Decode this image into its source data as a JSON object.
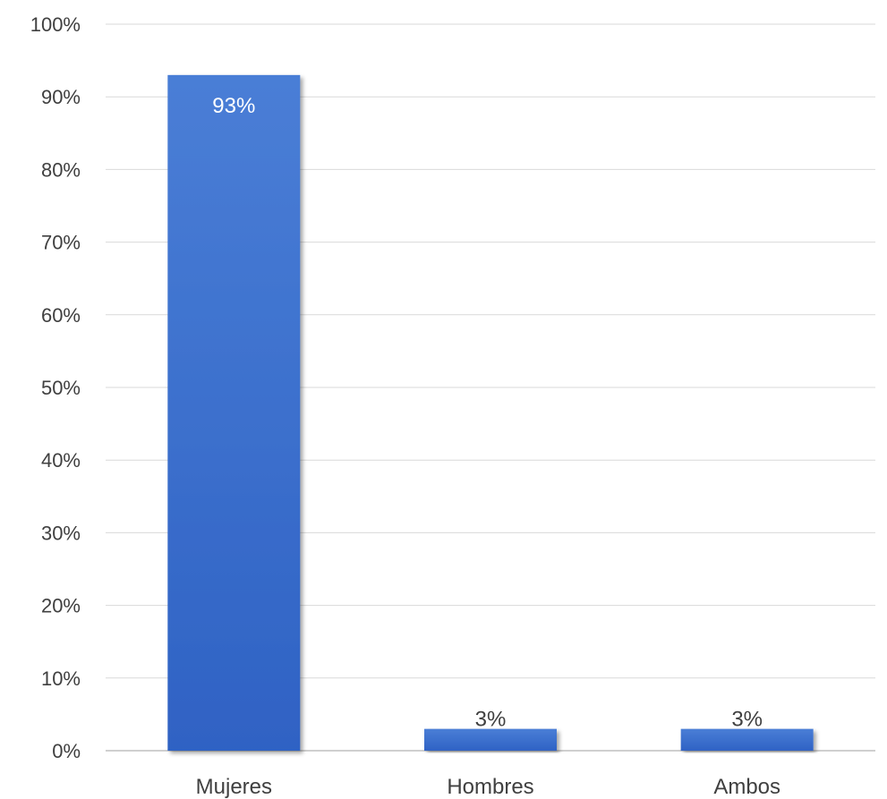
{
  "chart_data": {
    "type": "bar",
    "title": "",
    "xlabel": "",
    "ylabel": "",
    "categories": [
      "Mujeres",
      "Hombres",
      "Ambos"
    ],
    "values": [
      93,
      3,
      3
    ],
    "data_labels": [
      "93%",
      "3%",
      "3%"
    ],
    "ylim": [
      0,
      100
    ],
    "y_ticks": [
      0,
      10,
      20,
      30,
      40,
      50,
      60,
      70,
      80,
      90,
      100
    ],
    "y_tick_labels": [
      "0%",
      "10%",
      "20%",
      "30%",
      "40%",
      "50%",
      "60%",
      "70%",
      "80%",
      "90%",
      "100%"
    ],
    "grid": true,
    "legend": "none",
    "bar_color": "#2f62c4",
    "bar_color_light": "#4a7ed6"
  }
}
